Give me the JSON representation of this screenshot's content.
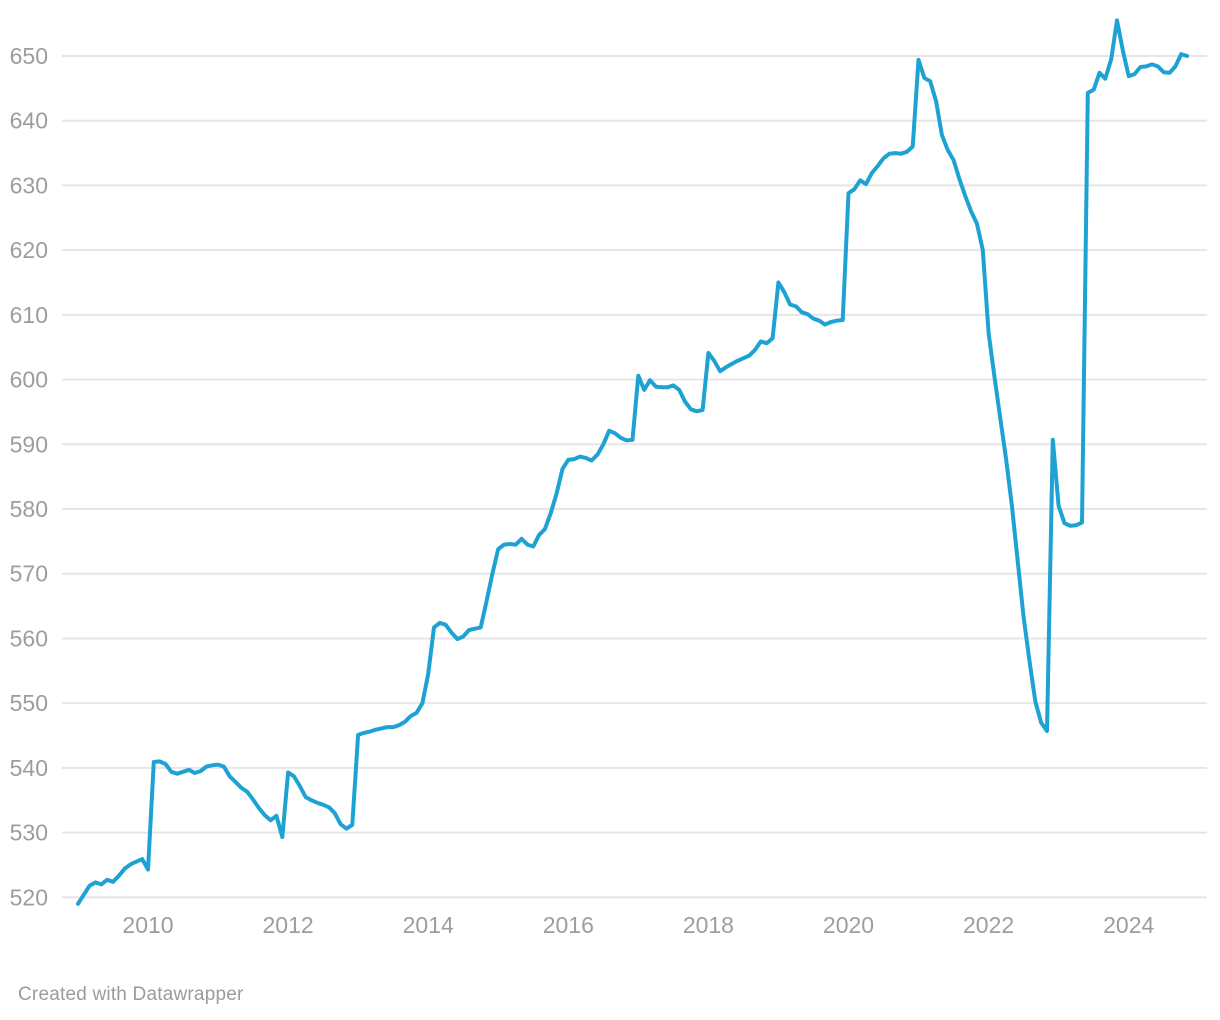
{
  "chart_data": {
    "type": "line",
    "title": "",
    "xlabel": "",
    "ylabel": "",
    "legend": "none",
    "grid": "horizontal",
    "x_tick_labels": [
      "2010",
      "2012",
      "2014",
      "2016",
      "2018",
      "2020",
      "2022",
      "2024"
    ],
    "x_tick_years": [
      2010,
      2012,
      2014,
      2016,
      2018,
      2020,
      2022,
      2024
    ],
    "y_ticks": [
      520,
      530,
      540,
      550,
      560,
      570,
      580,
      590,
      600,
      610,
      620,
      630,
      640,
      650
    ],
    "ylim": [
      520,
      650
    ],
    "x_start_year": 2009.0,
    "x_step_years": 0.0833333,
    "series": [
      {
        "name": "",
        "frequency": "monthly",
        "start": "2009-01",
        "end": "2024-11",
        "values": [
          519.0,
          520.4,
          521.8,
          522.3,
          522.0,
          522.7,
          522.4,
          523.3,
          524.4,
          525.1,
          525.5,
          525.9,
          524.3,
          540.9,
          541.0,
          540.6,
          539.4,
          539.1,
          539.4,
          539.7,
          539.2,
          539.5,
          540.2,
          540.4,
          540.5,
          540.2,
          538.7,
          537.8,
          536.9,
          536.3,
          535.1,
          533.8,
          532.7,
          531.9,
          532.6,
          529.3,
          539.3,
          538.7,
          537.2,
          535.5,
          535.0,
          534.6,
          534.3,
          533.9,
          533.0,
          531.3,
          530.6,
          531.2,
          545.1,
          545.4,
          545.6,
          545.9,
          546.1,
          546.3,
          546.3,
          546.6,
          547.1,
          548.0,
          548.5,
          550.0,
          554.5,
          561.7,
          562.4,
          562.1,
          560.9,
          559.9,
          560.3,
          561.3,
          561.5,
          561.7,
          565.8,
          570.0,
          573.8,
          574.5,
          574.6,
          574.5,
          575.4,
          574.5,
          574.2,
          576.0,
          576.9,
          579.4,
          582.4,
          586.2,
          587.6,
          587.7,
          588.1,
          587.9,
          587.5,
          588.4,
          590.0,
          592.1,
          591.7,
          591.0,
          590.6,
          590.7,
          600.6,
          598.4,
          599.9,
          598.9,
          598.8,
          598.8,
          599.1,
          598.4,
          596.6,
          595.4,
          595.1,
          595.3,
          604.1,
          602.9,
          601.3,
          601.9,
          602.4,
          602.9,
          603.3,
          603.7,
          604.6,
          605.9,
          605.6,
          606.4,
          615.0,
          613.5,
          611.6,
          611.3,
          610.4,
          610.1,
          609.4,
          609.1,
          608.5,
          608.9,
          609.1,
          609.2,
          628.8,
          629.4,
          630.8,
          630.2,
          631.9,
          633.0,
          634.2,
          634.9,
          635.0,
          634.9,
          635.2,
          636.0,
          649.4,
          646.6,
          646.1,
          643.0,
          637.8,
          635.5,
          633.9,
          631.0,
          628.4,
          626.0,
          624.1,
          620.0,
          607.2,
          600.5,
          594.0,
          587.7,
          580.5,
          571.8,
          563.3,
          556.5,
          550.3,
          547.0,
          545.7,
          590.7,
          580.5,
          577.8,
          577.4,
          577.5,
          577.9,
          644.3,
          644.8,
          647.4,
          646.5,
          649.5,
          655.5,
          650.8,
          646.9,
          647.2,
          648.3,
          648.4,
          648.7,
          648.4,
          647.5,
          647.4,
          648.4,
          650.3,
          650.0
        ]
      }
    ],
    "line_color": "#1ea2d4"
  },
  "colors": {
    "background": "#ffffff",
    "gridline": "#e6e6e6",
    "tick_label": "#9d9d9d",
    "footer_text": "#9b9b9b",
    "line": "#1ea2d4"
  },
  "footer": {
    "credit": "Created with Datawrapper"
  }
}
